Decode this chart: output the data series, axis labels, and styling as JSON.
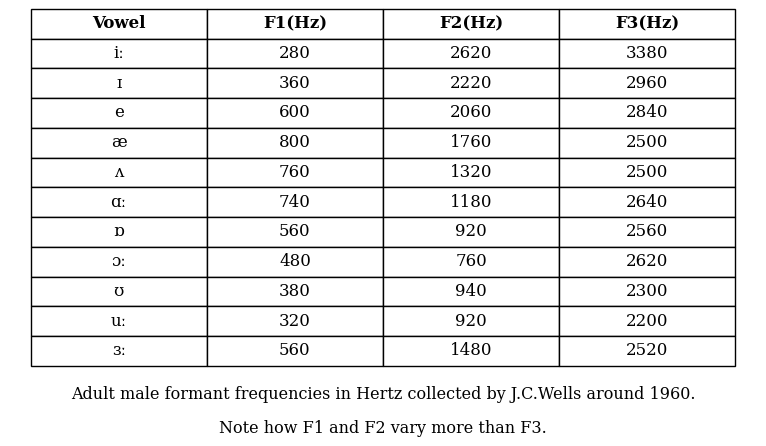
{
  "columns": [
    "Vowel",
    "F1(Hz)",
    "F2(Hz)",
    "F3(Hz)"
  ],
  "rows": [
    [
      "iː",
      "280",
      "2620",
      "3380"
    ],
    [
      "ɪ",
      "360",
      "2220",
      "2960"
    ],
    [
      "e",
      "600",
      "2060",
      "2840"
    ],
    [
      "æ",
      "800",
      "1760",
      "2500"
    ],
    [
      "ʌ",
      "760",
      "1320",
      "2500"
    ],
    [
      "ɑː",
      "740",
      "1180",
      "2640"
    ],
    [
      "ɒ",
      "560",
      "920",
      "2560"
    ],
    [
      "ɔː",
      "480",
      "760",
      "2620"
    ],
    [
      "ʊ",
      "380",
      "940",
      "2300"
    ],
    [
      "uː",
      "320",
      "920",
      "2200"
    ],
    [
      "ɜː",
      "560",
      "1480",
      "2520"
    ]
  ],
  "caption_line1": "Adult male formant frequencies in Hertz collected by J.C.Wells around 1960.",
  "caption_line2": "Note how F1 and F2 vary more than F3.",
  "background_color": "#ffffff",
  "header_font_weight": "bold",
  "cell_font_size": 12,
  "header_font_size": 12,
  "caption_font_size": 11.5,
  "table_edge_color": "#000000",
  "text_color": "#000000",
  "font_family": "serif"
}
